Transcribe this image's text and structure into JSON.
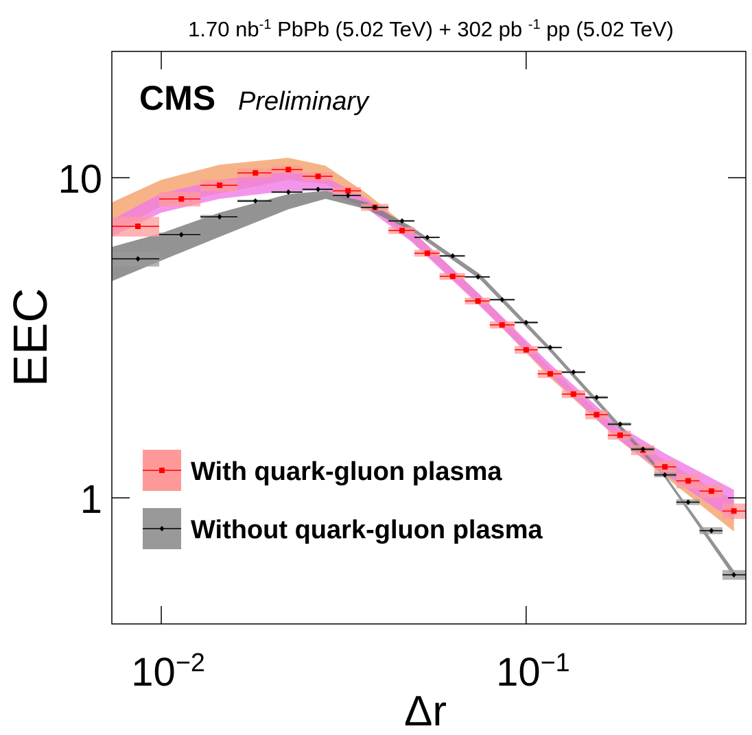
{
  "chart_data": {
    "type": "scatter",
    "title": "1.70 nb^{-1} PbPb (5.02 TeV) + 302 pb ^{-1} pp (5.02 TeV)",
    "annotations": [
      "CMS",
      "Preliminary"
    ],
    "x_label": "Δr",
    "y_label": "EEC",
    "log_x": true,
    "log_y": true,
    "xlim": [
      0.00732,
      0.4
    ],
    "ylim": [
      0.404,
      24.8
    ],
    "xticks": [
      {
        "value": 0.01,
        "label": "10^{−2}"
      },
      {
        "value": 0.1,
        "label": "10^{−1}"
      }
    ],
    "yticks": [
      1,
      10
    ],
    "legend": "lower left",
    "bins": [
      0.00732,
      0.00987,
      0.0128,
      0.01617,
      0.02005,
      0.02438,
      0.0295,
      0.03526,
      0.04194,
      0.04939,
      0.05793,
      0.06794,
      0.0795,
      0.09303,
      0.1076,
      0.1252,
      0.1452,
      0.1674,
      0.1939,
      0.2244,
      0.2579,
      0.2987,
      0.3452,
      0.3996
    ],
    "x": [
      0.00863,
      0.01135,
      0.01445,
      0.01811,
      0.0223,
      0.0269,
      0.0325,
      0.0385,
      0.0457,
      0.0536,
      0.0629,
      0.0738,
      0.0859,
      0.1,
      0.1164,
      0.1348,
      0.156,
      0.181,
      0.209,
      0.24,
      0.278,
      0.322,
      0.371
    ],
    "series": [
      {
        "name": "With quark-gluon plasma",
        "color": "#ff0000",
        "box_color": "#ff9999",
        "values": [
          7.05,
          8.58,
          9.47,
          10.35,
          10.6,
          10.1,
          9.1,
          8.08,
          6.84,
          5.81,
          4.92,
          4.12,
          3.47,
          2.9,
          2.44,
          2.11,
          1.82,
          1.57,
          1.41,
          1.25,
          1.13,
          1.05,
          0.91
        ],
        "errors": [
          0.5,
          0.45,
          0.4,
          0.35,
          0.3,
          0.3,
          0.25,
          0.2,
          0.17,
          0.14,
          0.12,
          0.1,
          0.09,
          0.08,
          0.07,
          0.06,
          0.06,
          0.05,
          0.05,
          0.06,
          0.06,
          0.05,
          0.05
        ]
      },
      {
        "name": "Without quark-gluon plasma",
        "color": "#000000",
        "box_color": "#999999",
        "values": [
          5.58,
          6.64,
          7.55,
          8.46,
          9.02,
          9.2,
          8.8,
          8.08,
          7.33,
          6.51,
          5.7,
          4.9,
          4.16,
          3.53,
          2.95,
          2.47,
          2.06,
          1.7,
          1.42,
          1.18,
          0.97,
          0.79,
          0.575
        ],
        "errors": [
          0.3,
          0.1,
          0.1,
          0.08,
          0.07,
          0.07,
          0.06,
          0.05,
          0.05,
          0.04,
          0.04,
          0.03,
          0.03,
          0.03,
          0.02,
          0.02,
          0.02,
          0.02,
          0.02,
          0.02,
          0.02,
          0.02,
          0.02
        ]
      }
    ],
    "bands": [
      {
        "color": "#f5a672",
        "x": [
          0.00732,
          0.01,
          0.01445,
          0.0223,
          0.0282,
          0.0366,
          0.0484,
          0.0749,
          0.116,
          0.178,
          0.2392,
          0.3711
        ],
        "upper": [
          8.37,
          9.85,
          10.98,
          11.54,
          10.9,
          8.93,
          6.88,
          4.3,
          2.56,
          1.64,
          1.31,
          0.98
        ],
        "lower": [
          6.71,
          8.17,
          8.93,
          9.85,
          9.56,
          8.25,
          6.38,
          4.0,
          2.38,
          1.53,
          1.17,
          0.785
        ]
      },
      {
        "color": "#f07ae6",
        "x": [
          0.00732,
          0.01,
          0.01445,
          0.0223,
          0.0282,
          0.0366,
          0.0484,
          0.0749,
          0.116,
          0.178,
          0.2392,
          0.3711
        ],
        "upper": [
          7.4,
          8.93,
          9.85,
          10.45,
          10.05,
          8.59,
          6.88,
          4.3,
          2.63,
          1.69,
          1.38,
          1.06
        ],
        "lower": [
          6.54,
          7.78,
          8.59,
          9.1,
          9.1,
          8.01,
          6.32,
          3.96,
          2.42,
          1.53,
          1.19,
          0.85
        ]
      },
      {
        "color": "#808080",
        "x": [
          0.00732,
          0.01,
          0.01445,
          0.0223,
          0.0282,
          0.0366,
          0.0484,
          0.0749,
          0.116,
          0.178,
          0.2392,
          0.3711
        ],
        "upper": [
          6.08,
          6.71,
          7.78,
          8.89,
          9.1,
          8.37,
          7.05,
          4.99,
          2.97,
          1.73,
          1.19,
          0.593
        ],
        "lower": [
          4.75,
          5.51,
          6.54,
          7.97,
          8.59,
          7.97,
          6.84,
          4.8,
          2.87,
          1.67,
          1.16,
          0.565
        ]
      }
    ]
  }
}
